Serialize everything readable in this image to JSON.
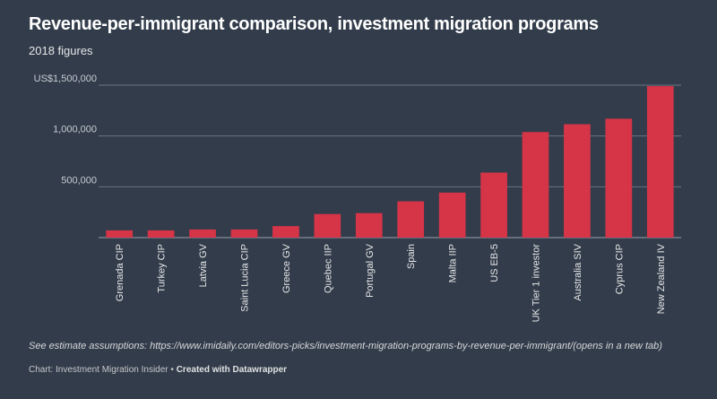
{
  "title": "Revenue-per-immigrant comparison, investment migration programs",
  "subtitle": "2018 figures",
  "note": "See estimate assumptions: https://www.imidaily.com/editors-picks/investment-migration-programs-by-revenue-per-immigrant/(opens in a new tab)",
  "credit": {
    "source": "Chart: Investment Migration Insider",
    "separator": "•",
    "created": "Created with Datawrapper"
  },
  "chart_data": {
    "type": "bar",
    "title": "Revenue-per-immigrant comparison, investment migration programs",
    "subtitle": "2018 figures",
    "categories": [
      "Grenada CIP",
      "Turkey CIP",
      "Latvia GV",
      "Saint Lucia CIP",
      "Greece GV",
      "Quebec IIP",
      "Portugal GV",
      "Spain",
      "Malta IIP",
      "US EB-5",
      "UK Tier 1 investor",
      "Australia SIV",
      "Cyprus CIP",
      "New Zealand IV"
    ],
    "values": [
      71000,
      71000,
      80000,
      80000,
      113000,
      232000,
      241000,
      357000,
      443000,
      640000,
      1039000,
      1116000,
      1170000,
      1491000
    ],
    "ylim": [
      0,
      1500000
    ],
    "yticks": [
      0,
      500000,
      1000000,
      1500000
    ],
    "ytick_labels": [
      "",
      "500,000",
      "1,000,000",
      "US$1,500,000"
    ],
    "grid": true,
    "bar_color": "#d63447",
    "background": "#323c4b"
  }
}
